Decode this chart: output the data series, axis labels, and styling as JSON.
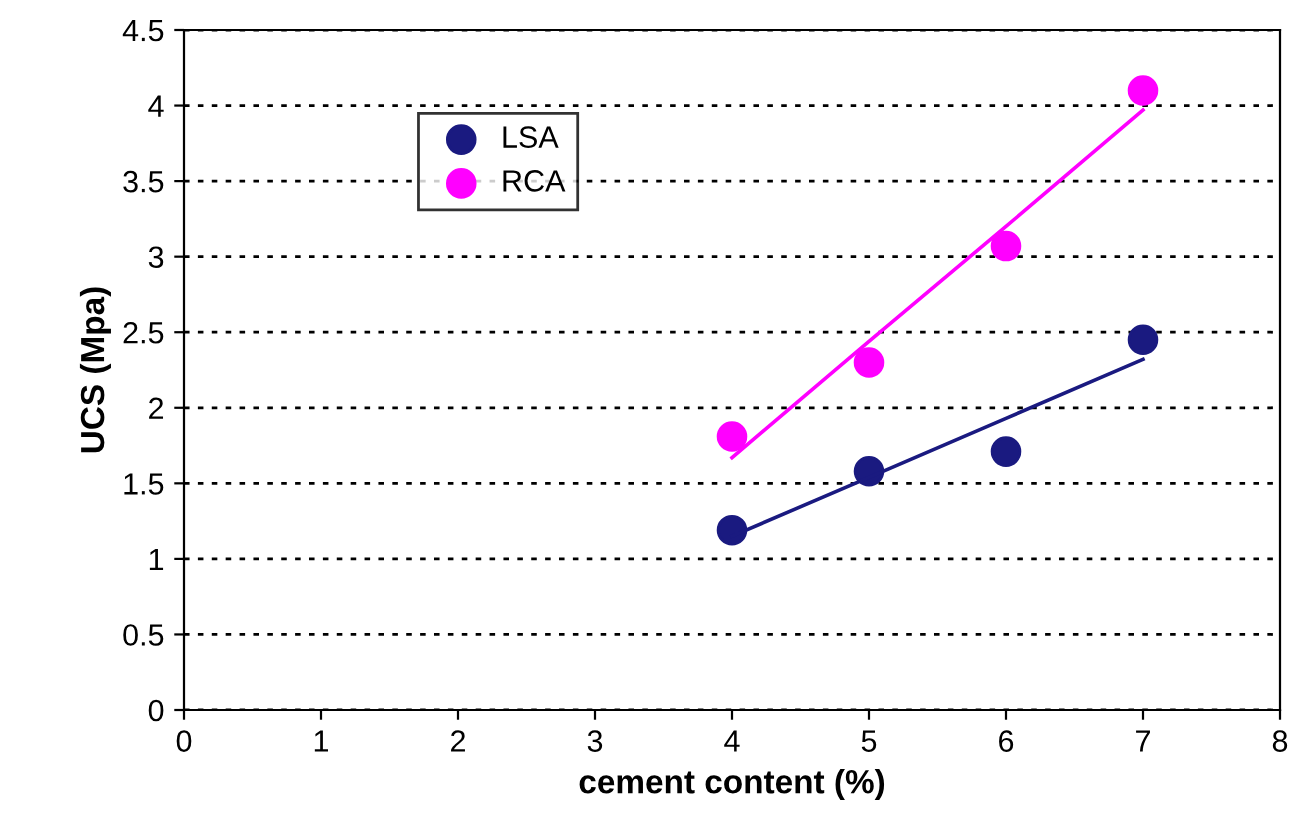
{
  "chart_data": {
    "type": "scatter",
    "xlabel": "cement content (%)",
    "ylabel": "UCS (Mpa)",
    "x": [
      4,
      5,
      6,
      7
    ],
    "series": [
      {
        "name": "LSA",
        "color": "#1a1a80",
        "values": [
          1.19,
          1.58,
          1.71,
          2.45
        ]
      },
      {
        "name": "RCA",
        "color": "#ff00ff",
        "values": [
          1.81,
          2.3,
          3.07,
          4.1
        ]
      },
      {
        "type": "line",
        "color": "#1a1a80",
        "values": [
          1.15,
          1.54,
          1.93,
          2.32
        ],
        "marker": "none"
      },
      {
        "type": "line",
        "color": "#ff00ff",
        "values": [
          1.67,
          2.44,
          3.2,
          3.97
        ],
        "marker": "none"
      }
    ],
    "xlim": [
      0,
      8
    ],
    "xticks": [
      0,
      1,
      2,
      3,
      4,
      5,
      6,
      7,
      8
    ],
    "ylim": [
      0,
      4.5
    ],
    "yticks": [
      0,
      0.5,
      1,
      1.5,
      2,
      2.5,
      3,
      3.5,
      4,
      4.5
    ],
    "grid": "y",
    "legend": "top left",
    "marker": "circle"
  }
}
